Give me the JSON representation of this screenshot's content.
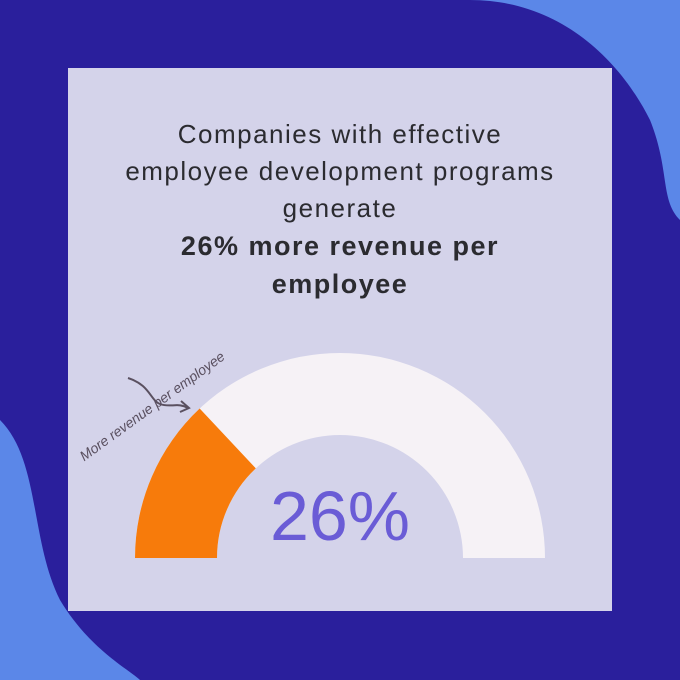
{
  "chart_data": {
    "type": "gauge",
    "title": "Companies with effective employee development programs generate",
    "highlight": "26% more revenue per employee",
    "annotation": "More revenue per employee",
    "value": 26,
    "value_label": "26%",
    "ylim": [
      0,
      100
    ],
    "color": "#f77b0b",
    "track_color": "#f6f2f6",
    "label_color": "#6a5cd6"
  }
}
